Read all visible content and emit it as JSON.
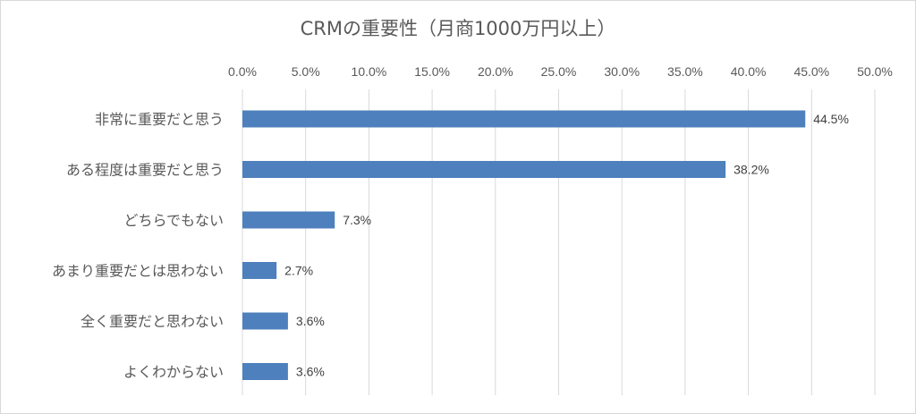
{
  "chart_data": {
    "type": "bar",
    "orientation": "horizontal",
    "title": "CRMの重要性（月商1000万円以上）",
    "categories": [
      "非常に重要だと思う",
      "ある程度は重要だと思う",
      "どちらでもない",
      "あまり重要だとは思わない",
      "全く重要だと思わない",
      "よくわからない"
    ],
    "values": [
      44.5,
      38.2,
      7.3,
      2.7,
      3.6,
      3.6
    ],
    "data_labels": [
      "44.5%",
      "38.2%",
      "7.3%",
      "2.7%",
      "3.6%",
      "3.6%"
    ],
    "xlim": [
      0,
      50
    ],
    "xticks": [
      0,
      5,
      10,
      15,
      20,
      25,
      30,
      35,
      40,
      45,
      50
    ],
    "xtick_labels": [
      "0.0%",
      "5.0%",
      "10.0%",
      "15.0%",
      "20.0%",
      "25.0%",
      "30.0%",
      "35.0%",
      "40.0%",
      "45.0%",
      "50.0%"
    ],
    "grid": true,
    "axis_position": "top",
    "bar_color": "#4e80bd",
    "legend": "none"
  }
}
